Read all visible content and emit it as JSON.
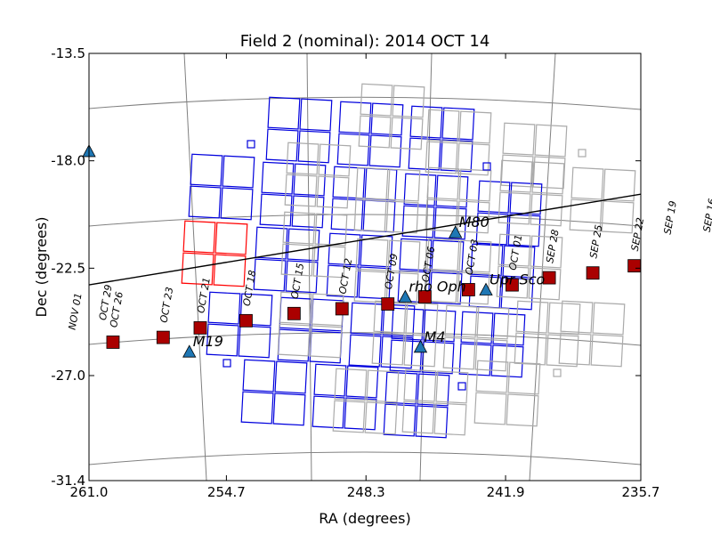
{
  "chart_data": {
    "type": "scatter",
    "title": "Field 2 (nominal): 2014 OCT 14",
    "xlabel": "RA (degrees)",
    "ylabel": "Dec (degrees)",
    "xlim": [
      261.0,
      235.7
    ],
    "ylim": [
      -31.4,
      -13.5
    ],
    "x_ticks": [
      "261.0",
      "254.7",
      "248.3",
      "241.9",
      "235.7"
    ],
    "y_ticks": [
      "-13.5",
      "-18.0",
      "-22.5",
      "-27.0",
      "-31.4"
    ],
    "grid": true,
    "colors": {
      "ccd_on_silicon": "#0000dd",
      "ccd_offset": "#ff0000",
      "ccd_off_silicon": "#aaaaaa",
      "grid": "#808080",
      "ecliptic": "#000000",
      "sun_position": "#aa0000",
      "target": "#1f77b4"
    },
    "ecliptic_line": [
      {
        "x": 261.0,
        "y": -23.2
      },
      {
        "x": 235.7,
        "y": -19.4
      }
    ],
    "sun_positions": [
      {
        "label": "NOV 01",
        "ra": 261.8,
        "dec": -25.7,
        "marker": false
      },
      {
        "label": "OCT 29",
        "ra": 260.4,
        "dec": -25.3,
        "marker": false
      },
      {
        "label": "OCT 26",
        "ra": 259.9,
        "dec": -25.6,
        "marker": true
      },
      {
        "label": "OCT 23",
        "ra": 257.6,
        "dec": -25.4,
        "marker": true
      },
      {
        "label": "OCT 21",
        "ra": 255.9,
        "dec": -25.0,
        "marker": true
      },
      {
        "label": "OCT 18",
        "ra": 253.8,
        "dec": -24.7,
        "marker": true
      },
      {
        "label": "OCT 15",
        "ra": 251.6,
        "dec": -24.4,
        "marker": true
      },
      {
        "label": "OCT 12",
        "ra": 249.4,
        "dec": -24.2,
        "marker": true
      },
      {
        "label": "OCT 09",
        "ra": 247.3,
        "dec": -24.0,
        "marker": true
      },
      {
        "label": "OCT 06",
        "ra": 245.6,
        "dec": -23.7,
        "marker": true
      },
      {
        "label": "OCT 03",
        "ra": 243.6,
        "dec": -23.4,
        "marker": true
      },
      {
        "label": "OCT 01",
        "ra": 241.6,
        "dec": -23.2,
        "marker": true
      },
      {
        "label": "SEP 28",
        "ra": 239.9,
        "dec": -22.9,
        "marker": true
      },
      {
        "label": "SEP 25",
        "ra": 237.9,
        "dec": -22.7,
        "marker": true
      },
      {
        "label": "SEP 22",
        "ra": 236.0,
        "dec": -22.4,
        "marker": true
      },
      {
        "label": "SEP 19",
        "ra": 234.5,
        "dec": -21.7,
        "marker": false
      },
      {
        "label": "SEP 16",
        "ra": 232.7,
        "dec": -21.6,
        "marker": false
      }
    ],
    "targets": [
      {
        "name": "M80",
        "ra": 244.2,
        "dec": -21.0
      },
      {
        "name": "rho Oph",
        "ra": 246.5,
        "dec": -23.7
      },
      {
        "name": "Upr Sco",
        "ra": 242.8,
        "dec": -23.4
      },
      {
        "name": "M4",
        "ra": 245.8,
        "dec": -25.8
      },
      {
        "name": "M19",
        "ra": 256.4,
        "dec": -26.0
      },
      {
        "name": "",
        "ra": 261.0,
        "dec": -17.6
      }
    ]
  }
}
